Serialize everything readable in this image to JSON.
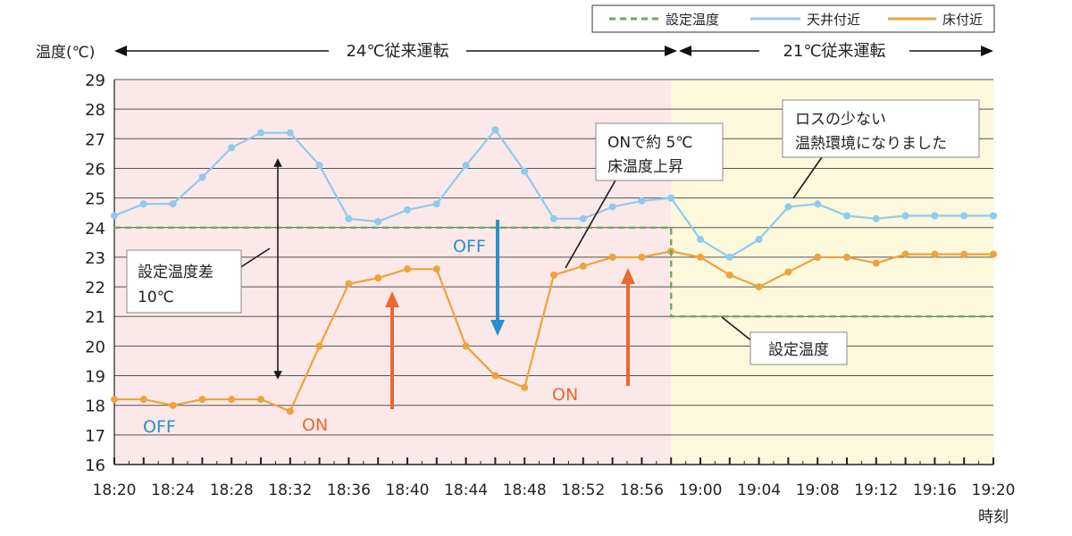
{
  "chart_data": {
    "type": "line",
    "ylabel": "温度(℃)",
    "xlabel": "時刻",
    "ylim": [
      16,
      29
    ],
    "yticks": [
      16,
      17,
      18,
      19,
      20,
      21,
      22,
      23,
      24,
      25,
      26,
      27,
      28,
      29
    ],
    "x_start": "18:20",
    "x_end": "19:20",
    "x_tick_labels": [
      "18:20",
      "18:24",
      "18:28",
      "18:32",
      "18:36",
      "18:40",
      "18:44",
      "18:48",
      "18:52",
      "18:56",
      "19:00",
      "19:04",
      "19:08",
      "19:12",
      "19:16",
      "19:20"
    ],
    "grid": true,
    "legend_position": "top-right",
    "legend": [
      {
        "label": "設定温度",
        "color": "#6aab5a",
        "style": "dashed"
      },
      {
        "label": "天井付近",
        "color": "#8ecbee",
        "style": "solid"
      },
      {
        "label": "床付近",
        "color": "#eda33a",
        "style": "solid"
      }
    ],
    "series": [
      {
        "name": "天井付近",
        "color": "#8ecbee",
        "x": [
          "18:20",
          "18:22",
          "18:24",
          "18:26",
          "18:28",
          "18:30",
          "18:32",
          "18:34",
          "18:36",
          "18:38",
          "18:40",
          "18:42",
          "18:44",
          "18:46",
          "18:48",
          "18:50",
          "18:52",
          "18:54",
          "18:56",
          "18:58",
          "19:00",
          "19:02",
          "19:04",
          "19:06",
          "19:08",
          "19:10",
          "19:12",
          "19:14",
          "19:16",
          "19:18",
          "19:20"
        ],
        "values": [
          24.4,
          24.8,
          24.8,
          25.7,
          26.7,
          27.2,
          27.2,
          26.1,
          24.3,
          24.2,
          24.6,
          24.8,
          26.1,
          27.3,
          25.9,
          24.3,
          24.3,
          24.7,
          24.9,
          25.0,
          23.6,
          23.0,
          23.6,
          24.7,
          24.8,
          24.4,
          24.3,
          24.4,
          24.4,
          24.4,
          24.4
        ]
      },
      {
        "name": "床付近",
        "color": "#eda33a",
        "x": [
          "18:20",
          "18:22",
          "18:24",
          "18:26",
          "18:28",
          "18:30",
          "18:32",
          "18:34",
          "18:36",
          "18:38",
          "18:40",
          "18:42",
          "18:44",
          "18:46",
          "18:48",
          "18:50",
          "18:52",
          "18:54",
          "18:56",
          "18:58",
          "19:00",
          "19:02",
          "19:04",
          "19:06",
          "19:08",
          "19:10",
          "19:12",
          "19:14",
          "19:16",
          "19:18",
          "19:20"
        ],
        "values": [
          18.2,
          18.2,
          18.0,
          18.2,
          18.2,
          18.2,
          17.8,
          20.0,
          22.1,
          22.3,
          22.6,
          22.6,
          20.0,
          19.0,
          18.6,
          22.4,
          22.7,
          23.0,
          23.0,
          23.2,
          23.0,
          22.4,
          22.0,
          22.5,
          23.0,
          23.0,
          22.8,
          23.1,
          23.1,
          23.1,
          23.1
        ]
      },
      {
        "name": "設定温度",
        "color": "#6aab5a",
        "style": "step",
        "x": [
          "18:20",
          "18:58",
          "18:58",
          "19:20"
        ],
        "values": [
          24,
          24,
          21,
          21
        ]
      }
    ],
    "regions": [
      {
        "from": "18:20",
        "to": "18:58",
        "color": "#fbe8e8",
        "label": "24℃従来運転"
      },
      {
        "from": "18:58",
        "to": "19:20",
        "color": "#fbf8dc",
        "label": "21℃従来運転"
      }
    ],
    "annotations": {
      "setpoint_label": "設定温度",
      "diff_label_line1": "設定温度差",
      "diff_label_line2": "10℃",
      "on_rise_line1": "ONで約 5℃",
      "on_rise_line2": "床温度上昇",
      "low_loss_line1": "ロスの少ない",
      "low_loss_line2": "温熱環境になりました",
      "off1": "OFF",
      "on1": "ON",
      "off2": "OFF",
      "on2": "ON"
    },
    "colors": {
      "arrow_blue": "#2a8fd0",
      "arrow_orange": "#e9692e",
      "text_blue": "#2a8fd0",
      "text_orange": "#e9692e"
    }
  }
}
